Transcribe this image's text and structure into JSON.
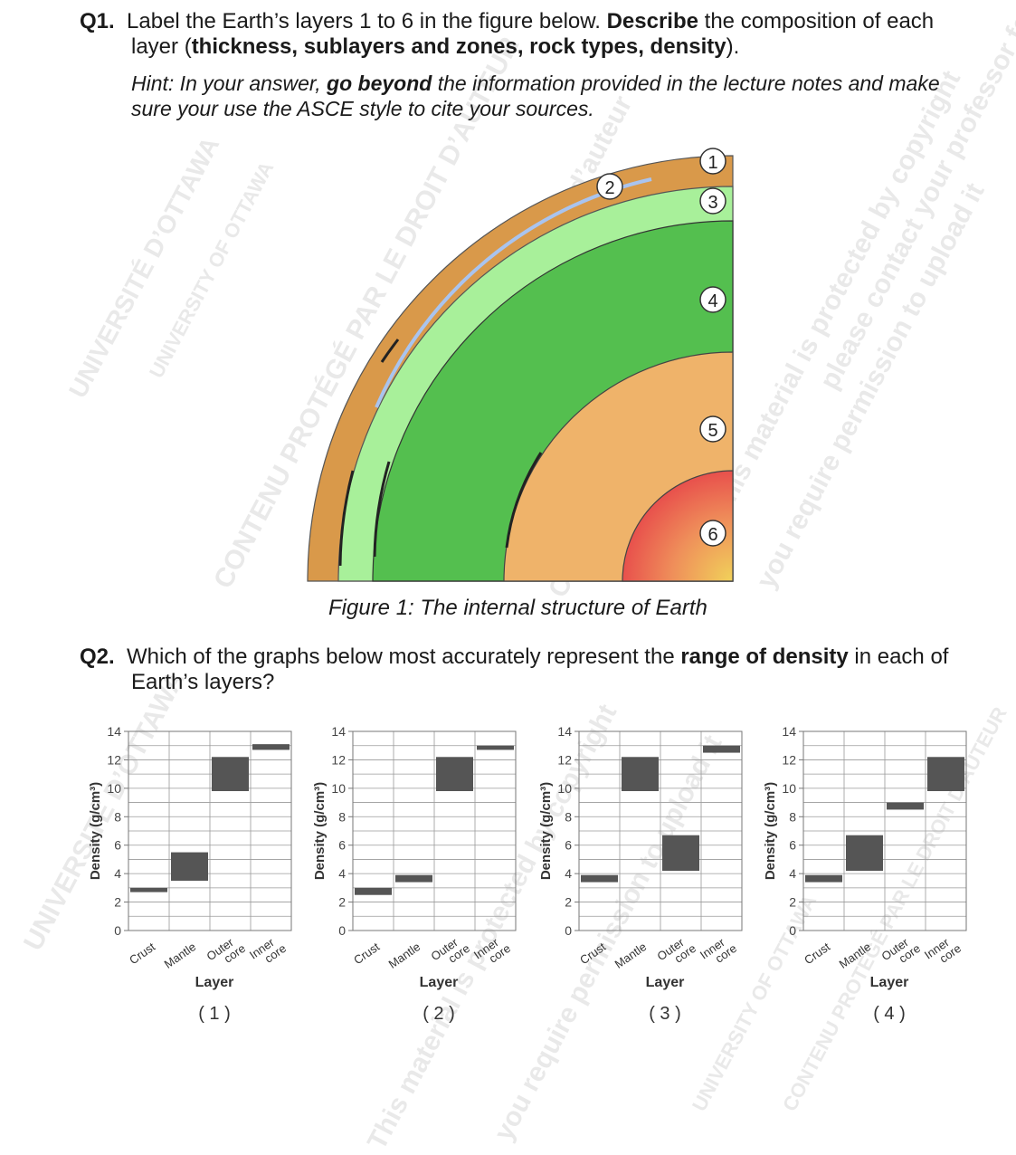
{
  "q1": {
    "number": "Q1.",
    "line1_a": "Label the Earth’s layers 1 to 6 in the figure below.",
    "line1_b": "Describe",
    "line1_c": "the composition of each",
    "line2_a": "layer (",
    "line2_b": "thickness, sublayers and zones, rock types, density",
    "line2_c": ").",
    "hint_a": "Hint: In your answer,",
    "hint_b": "go beyond",
    "hint_c": "the information provided in the lecture notes and make",
    "hint_line2": "sure your use the ASCE style to cite your sources."
  },
  "figure": {
    "caption": "Figure 1: The internal structure of Earth",
    "labels": [
      "1",
      "2",
      "3",
      "4",
      "5",
      "6"
    ],
    "colors": {
      "crust": "#d9994a",
      "upper_mantle": "#a8f09a",
      "lower_mantle": "#54bf4f",
      "outer_core": "#efb36a",
      "inner_core": "#e8634e"
    }
  },
  "q2": {
    "number": "Q2.",
    "line1_a": "Which of the graphs below most accurately represent the",
    "line1_b": "range of density",
    "line1_c": "in each of",
    "line2": "Earth’s layers?"
  },
  "chart_data": [
    {
      "type": "bar",
      "caption": "( 1 )",
      "xlabel": "Layer",
      "ylabel": "Density (g/cm³)",
      "ylim": [
        0,
        14
      ],
      "yticks": [
        0,
        2,
        4,
        6,
        8,
        10,
        12,
        14
      ],
      "categories": [
        "Crust",
        "Mantle",
        "Outer core",
        "Inner core"
      ],
      "ranges": [
        [
          2.7,
          3.0
        ],
        [
          3.5,
          5.5
        ],
        [
          9.8,
          12.2
        ],
        [
          12.7,
          13.1
        ]
      ],
      "bar_color": "#555555",
      "grid": true
    },
    {
      "type": "bar",
      "caption": "( 2 )",
      "xlabel": "Layer",
      "ylabel": "Density (g/cm³)",
      "ylim": [
        0,
        14
      ],
      "yticks": [
        0,
        2,
        4,
        6,
        8,
        10,
        12,
        14
      ],
      "categories": [
        "Crust",
        "Mantle",
        "Outer core",
        "Inner core"
      ],
      "ranges": [
        [
          2.5,
          3.0
        ],
        [
          3.4,
          3.9
        ],
        [
          9.8,
          12.2
        ],
        [
          12.7,
          13.0
        ]
      ],
      "bar_color": "#555555",
      "grid": true
    },
    {
      "type": "bar",
      "caption": "( 3 )",
      "xlabel": "Layer",
      "ylabel": "Density (g/cm³)",
      "ylim": [
        0,
        14
      ],
      "yticks": [
        0,
        2,
        4,
        6,
        8,
        10,
        12,
        14
      ],
      "categories": [
        "Crust",
        "Mantle",
        "Outer core",
        "Inner core"
      ],
      "ranges": [
        [
          3.4,
          3.9
        ],
        [
          9.8,
          12.2
        ],
        [
          4.2,
          6.7
        ],
        [
          12.5,
          13.0
        ]
      ],
      "bar_color": "#555555",
      "grid": true
    },
    {
      "type": "bar",
      "caption": "( 4 )",
      "xlabel": "Layer",
      "ylabel": "Density (g/cm³)",
      "ylim": [
        0,
        14
      ],
      "yticks": [
        0,
        2,
        4,
        6,
        8,
        10,
        12,
        14
      ],
      "categories": [
        "Crust",
        "Mantle",
        "Outer core",
        "Inner core"
      ],
      "ranges": [
        [
          3.4,
          3.9
        ],
        [
          4.2,
          6.7
        ],
        [
          8.5,
          9.0
        ],
        [
          9.8,
          12.2
        ]
      ],
      "bar_color": "#555555",
      "grid": true
    }
  ],
  "watermarks": [
    "UNIVERSITÉ D’OTTAWA",
    "UNIVERSITY OF OTTAWA",
    "CONTENU PROTÉGÉ PAR LE DROIT D’AUTEUR",
    "COPYRIGHTED MATERIAL",
    "Ce cours est protégé par le droit d’auteur",
    "This material is protected by copyright",
    "you require permission to upload it",
    "please contact your professor for clarification"
  ]
}
